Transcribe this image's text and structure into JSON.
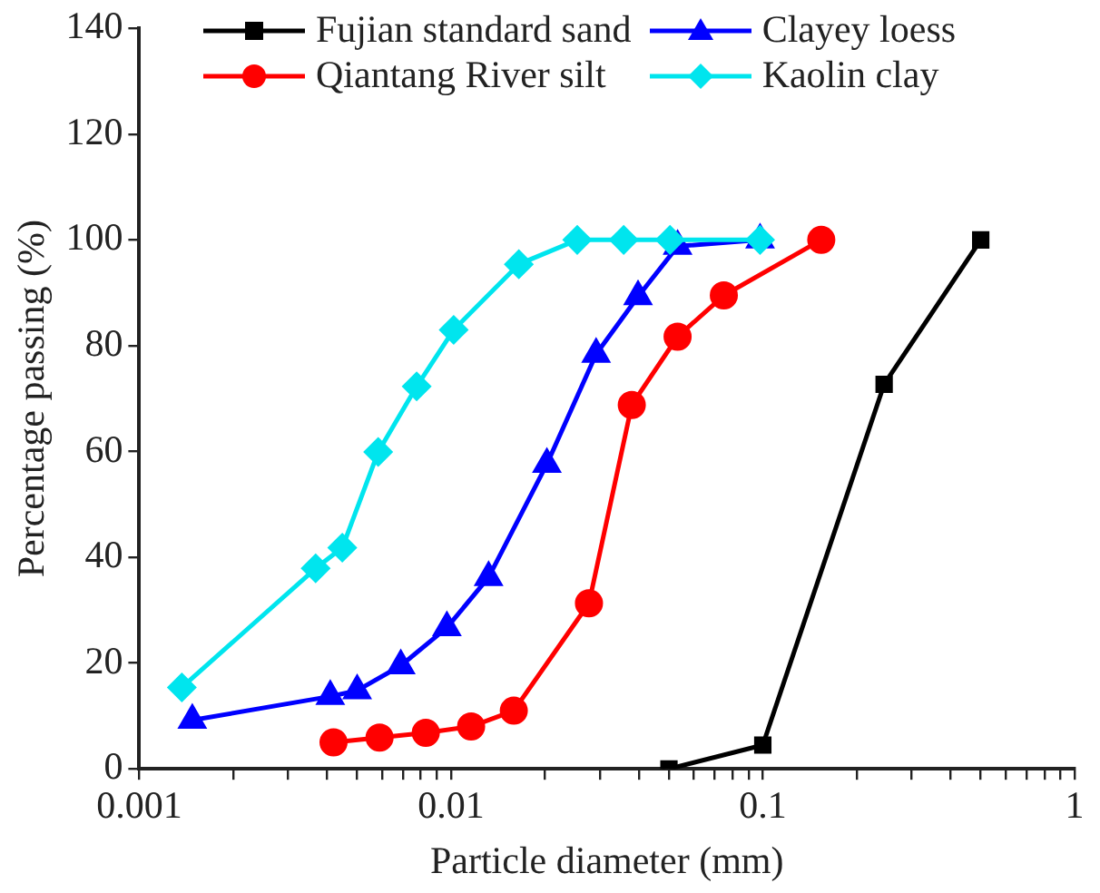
{
  "chart_data": {
    "type": "line",
    "xlabel": "Particle diameter (mm)",
    "ylabel": "Percentage passing (%)",
    "log": "x",
    "legend": "top",
    "xlim": [
      0.001,
      1
    ],
    "xticks": [
      {
        "value": 0.001,
        "label": "0.001"
      },
      {
        "value": 0.002,
        "label": null
      },
      {
        "value": 0.003,
        "label": null
      },
      {
        "value": 0.004,
        "label": null
      },
      {
        "value": 0.005,
        "label": null
      },
      {
        "value": 0.006,
        "label": null
      },
      {
        "value": 0.007,
        "label": null
      },
      {
        "value": 0.008,
        "label": null
      },
      {
        "value": 0.009,
        "label": null
      },
      {
        "value": 0.01,
        "label": "0.01"
      },
      {
        "value": 0.02,
        "label": null
      },
      {
        "value": 0.03,
        "label": null
      },
      {
        "value": 0.04,
        "label": null
      },
      {
        "value": 0.05,
        "label": null
      },
      {
        "value": 0.06,
        "label": null
      },
      {
        "value": 0.07,
        "label": null
      },
      {
        "value": 0.08,
        "label": null
      },
      {
        "value": 0.09,
        "label": null
      },
      {
        "value": 0.1,
        "label": "0.1"
      },
      {
        "value": 0.2,
        "label": null
      },
      {
        "value": 0.3,
        "label": null
      },
      {
        "value": 0.4,
        "label": null
      },
      {
        "value": 0.5,
        "label": null
      },
      {
        "value": 0.6,
        "label": null
      },
      {
        "value": 0.7,
        "label": null
      },
      {
        "value": 0.8,
        "label": null
      },
      {
        "value": 0.9,
        "label": null
      },
      {
        "value": 1,
        "label": "1"
      }
    ],
    "ylim": [
      0,
      140
    ],
    "yticks": [
      0,
      20,
      40,
      60,
      80,
      100,
      120,
      140
    ],
    "series": [
      {
        "name": "Fujian standard sand",
        "color": "#000000",
        "marker": "square",
        "x": [
          0.05,
          0.1,
          0.245,
          0.5
        ],
        "values": [
          0,
          4.5,
          72.7,
          100
        ]
      },
      {
        "name": "Qiantang River silt",
        "color": "#ff0000",
        "marker": "circle",
        "x": [
          0.0042,
          0.0059,
          0.0083,
          0.0116,
          0.0159,
          0.0277,
          0.038,
          0.0533,
          0.075,
          0.154
        ],
        "values": [
          5,
          5.9,
          6.8,
          8,
          11,
          31.3,
          68.8,
          81.7,
          89.5,
          100
        ]
      },
      {
        "name": "Clayey loess",
        "color": "#0000ff",
        "marker": "triangle",
        "x": [
          0.00148,
          0.0041,
          0.005,
          0.0069,
          0.0097,
          0.0132,
          0.0203,
          0.0292,
          0.0398,
          0.0533,
          0.098
        ],
        "values": [
          9.2,
          13.7,
          14.8,
          19.5,
          26.7,
          36.2,
          57.6,
          78.4,
          89.3,
          98.8,
          100
        ]
      },
      {
        "name": "Kaolin clay",
        "color": "#00e5ee",
        "marker": "diamond",
        "x": [
          0.00137,
          0.00368,
          0.00448,
          0.00584,
          0.00776,
          0.0102,
          0.0165,
          0.0254,
          0.0358,
          0.0504,
          0.098
        ],
        "values": [
          15.4,
          37.9,
          41.8,
          59.9,
          72.3,
          83,
          95.4,
          100,
          100,
          100,
          100
        ]
      }
    ]
  }
}
